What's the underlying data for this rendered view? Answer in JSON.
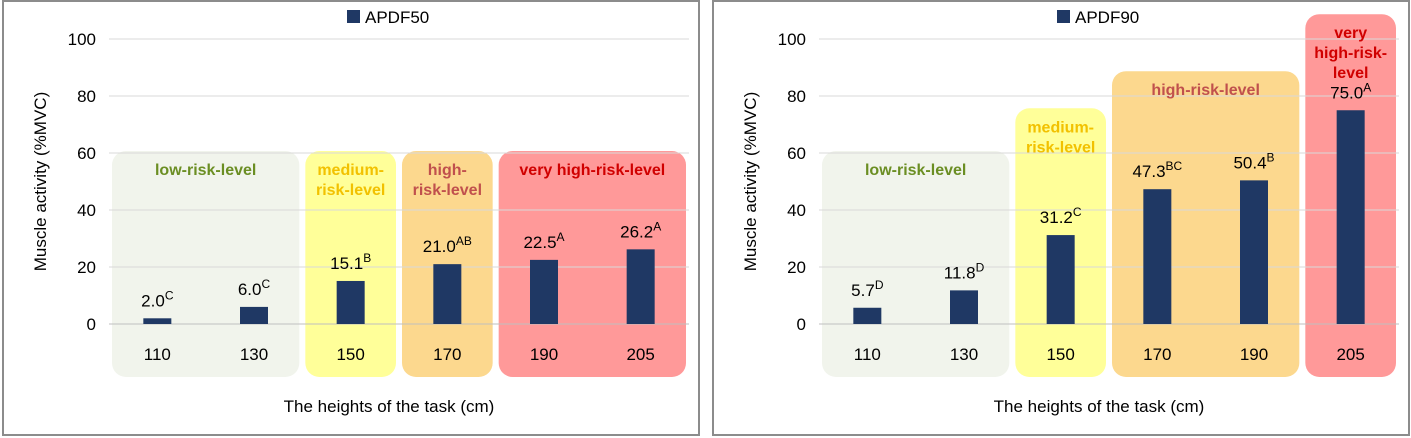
{
  "chart_data": [
    {
      "type": "bar",
      "legend": "APDF50",
      "legend_position": "top-center",
      "categories": [
        "110",
        "130",
        "150",
        "170",
        "190",
        "205"
      ],
      "values": [
        2.0,
        6.0,
        15.1,
        21.0,
        22.5,
        26.2
      ],
      "value_labels": [
        "2.0",
        "6.0",
        "15.1",
        "21.0",
        "22.5",
        "26.2"
      ],
      "superscripts": [
        "C",
        "C",
        "B",
        "AB",
        "A",
        "A"
      ],
      "ylabel": "Muscle activity (%MVC)",
      "xlabel": "The heights of the task (cm)",
      "ylim": [
        0,
        100
      ],
      "yticks": [
        "0",
        "20",
        "40",
        "60",
        "80",
        "100"
      ],
      "grid": true,
      "zones": [
        {
          "lines": [
            "low-risk-level"
          ],
          "start": 0,
          "end": 1,
          "top": 60,
          "fill": "#f1f4ec",
          "color": "#6b8e23"
        },
        {
          "lines": [
            "medium-",
            "risk-level"
          ],
          "start": 2,
          "end": 2,
          "top": 60,
          "fill": "#ffff99",
          "color": "#f2c100"
        },
        {
          "lines": [
            "high-",
            "risk-level"
          ],
          "start": 3,
          "end": 3,
          "top": 60,
          "fill": "#fcd88e",
          "color": "#c0504d"
        },
        {
          "lines": [
            "very high-risk-level"
          ],
          "start": 4,
          "end": 5,
          "top": 60,
          "fill": "#ff9999",
          "color": "#d00000"
        }
      ]
    },
    {
      "type": "bar",
      "legend": "APDF90",
      "legend_position": "top-center",
      "categories": [
        "110",
        "130",
        "150",
        "170",
        "190",
        "205"
      ],
      "values": [
        5.7,
        11.8,
        31.2,
        47.3,
        50.4,
        75.0
      ],
      "value_labels": [
        "5.7",
        "11.8",
        "31.2",
        "47.3",
        "50.4",
        "75.0"
      ],
      "superscripts": [
        "D",
        "D",
        "C",
        "BC",
        "B",
        "A"
      ],
      "ylabel": "Muscle activity (%MVC)",
      "xlabel": "The heights of the task (cm)",
      "ylim": [
        0,
        100
      ],
      "yticks": [
        "0",
        "20",
        "40",
        "60",
        "80",
        "100"
      ],
      "grid": true,
      "zones": [
        {
          "lines": [
            "low-risk-level"
          ],
          "start": 0,
          "end": 1,
          "top": 60,
          "fill": "#f1f4ec",
          "color": "#6b8e23"
        },
        {
          "lines": [
            "medium-",
            "risk-level"
          ],
          "start": 2,
          "end": 2,
          "top": 75,
          "fill": "#ffff99",
          "color": "#f2c100"
        },
        {
          "lines": [
            "high-risk-level"
          ],
          "start": 3,
          "end": 4,
          "top": 88,
          "fill": "#fcd88e",
          "color": "#c0504d"
        },
        {
          "lines": [
            "very",
            "high-risk-",
            "level"
          ],
          "start": 5,
          "end": 5,
          "top": 108,
          "fill": "#ff9999",
          "color": "#d00000"
        }
      ]
    }
  ]
}
